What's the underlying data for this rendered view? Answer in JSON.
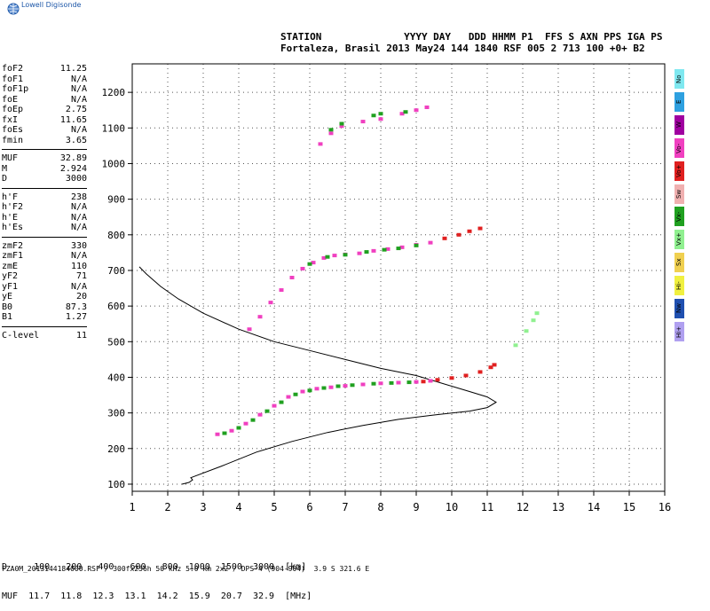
{
  "logo": {
    "text": "Lowell Digisonde",
    "icon": "globe-icon"
  },
  "header": {
    "line1": "STATION              YYYY DAY   DDD HHMM P1  FFS S AXN PPS IGA PS",
    "line2": "Fortaleza, Brasil 2013 May24 144 1840 RSF 005 2 713 100 +0+ B2"
  },
  "params": {
    "group1": [
      {
        "k": "foF2",
        "v": "11.25"
      },
      {
        "k": "foF1",
        "v": "N/A"
      },
      {
        "k": "foF1p",
        "v": "N/A"
      },
      {
        "k": "foE",
        "v": "N/A"
      },
      {
        "k": "foEp",
        "v": "2.75"
      },
      {
        "k": "fxI",
        "v": "11.65"
      },
      {
        "k": "foEs",
        "v": "N/A"
      },
      {
        "k": "fmin",
        "v": "3.65"
      }
    ],
    "group2": [
      {
        "k": "MUF",
        "v": "32.89"
      },
      {
        "k": "M",
        "v": "2.924"
      },
      {
        "k": "D",
        "v": "3000"
      }
    ],
    "group3": [
      {
        "k": "h'F",
        "v": "238"
      },
      {
        "k": "h'F2",
        "v": "N/A"
      },
      {
        "k": "h'E",
        "v": "N/A"
      },
      {
        "k": "h'Es",
        "v": "N/A"
      }
    ],
    "group4": [
      {
        "k": "zmF2",
        "v": "330"
      },
      {
        "k": "zmF1",
        "v": "N/A"
      },
      {
        "k": "zmE",
        "v": "110"
      },
      {
        "k": "yF2",
        "v": "71"
      },
      {
        "k": "yF1",
        "v": "N/A"
      },
      {
        "k": "yE",
        "v": "20"
      },
      {
        "k": "B0",
        "v": "87.3"
      },
      {
        "k": "B1",
        "v": "1.27"
      }
    ],
    "group5": [
      {
        "k": "C-level",
        "v": "11"
      }
    ]
  },
  "legend": [
    {
      "label": "No",
      "color": "#7fe8f0"
    },
    {
      "label": "E",
      "color": "#2ea0e0"
    },
    {
      "label": "W",
      "color": "#a000a0"
    },
    {
      "label": "Vo-",
      "color": "#f040c0"
    },
    {
      "label": "Vo+",
      "color": "#e02020"
    },
    {
      "label": "Sw",
      "color": "#f0b0b0"
    },
    {
      "label": "Vx-",
      "color": "#20a020"
    },
    {
      "label": "Vx+",
      "color": "#90f090"
    },
    {
      "label": "Sx",
      "color": "#f0d050"
    },
    {
      "label": "Hi-",
      "color": "#f0f040"
    },
    {
      "label": "Nw",
      "color": "#2050b0"
    },
    {
      "label": "Hi+",
      "color": "#b0a0f0"
    }
  ],
  "muf_table": {
    "line1": "D     100   200   400   600   800  1000  1500  3000  [km]",
    "line2": "MUF  11.7  11.8  12.3  13.1  14.2  15.9  20.7  32.9  [MHz]"
  },
  "footer": "FZA0M_2013144184000.RSF / 300fx256h 50 kHz 5.0 km 2x2 / DPS-4 (904-904)  3.9 S 321.6 E",
  "chart_data": {
    "type": "scatter",
    "xlim": [
      1,
      16
    ],
    "ylim": [
      80,
      1280
    ],
    "x_ticks": [
      1,
      2,
      3,
      4,
      5,
      6,
      7,
      8,
      9,
      10,
      11,
      12,
      13,
      14,
      15,
      16
    ],
    "y_ticks": [
      100,
      200,
      300,
      400,
      500,
      600,
      700,
      800,
      900,
      1000,
      1100,
      1200
    ],
    "grid": true,
    "series": [
      {
        "color": "#f040c0",
        "points": [
          [
            3.4,
            240
          ],
          [
            3.8,
            250
          ],
          [
            4.2,
            270
          ],
          [
            4.6,
            295
          ],
          [
            5.0,
            320
          ],
          [
            5.4,
            345
          ],
          [
            5.8,
            360
          ],
          [
            6.2,
            368
          ],
          [
            6.6,
            372
          ],
          [
            7.0,
            376
          ],
          [
            7.5,
            380
          ],
          [
            8.0,
            383
          ],
          [
            8.5,
            385
          ],
          [
            9.0,
            387
          ],
          [
            9.4,
            390
          ]
        ]
      },
      {
        "color": "#20a020",
        "points": [
          [
            3.6,
            243
          ],
          [
            4.0,
            258
          ],
          [
            4.4,
            280
          ],
          [
            4.8,
            305
          ],
          [
            5.2,
            330
          ],
          [
            5.6,
            352
          ],
          [
            6.0,
            363
          ],
          [
            6.4,
            370
          ],
          [
            6.8,
            375
          ],
          [
            7.2,
            378
          ],
          [
            7.8,
            382
          ],
          [
            8.3,
            384
          ],
          [
            8.8,
            386
          ]
        ]
      },
      {
        "color": "#e02020",
        "points": [
          [
            9.2,
            388
          ],
          [
            9.6,
            393
          ],
          [
            10.0,
            398
          ],
          [
            10.4,
            405
          ],
          [
            10.8,
            415
          ],
          [
            11.1,
            428
          ],
          [
            11.2,
            435
          ]
        ]
      },
      {
        "color": "#f040c0",
        "points": [
          [
            4.3,
            535
          ],
          [
            4.6,
            570
          ],
          [
            4.9,
            610
          ],
          [
            5.2,
            645
          ],
          [
            5.5,
            680
          ],
          [
            5.8,
            705
          ],
          [
            6.1,
            722
          ],
          [
            6.4,
            735
          ],
          [
            6.7,
            742
          ],
          [
            7.0,
            745
          ],
          [
            7.4,
            748
          ],
          [
            7.8,
            755
          ],
          [
            8.2,
            760
          ],
          [
            8.6,
            765
          ],
          [
            9.0,
            772
          ],
          [
            9.4,
            778
          ]
        ]
      },
      {
        "color": "#20a020",
        "points": [
          [
            6.0,
            718
          ],
          [
            6.5,
            738
          ],
          [
            7.0,
            744
          ],
          [
            7.6,
            752
          ],
          [
            8.1,
            758
          ],
          [
            8.5,
            762
          ],
          [
            9.0,
            770
          ]
        ]
      },
      {
        "color": "#e02020",
        "points": [
          [
            9.8,
            790
          ],
          [
            10.2,
            800
          ],
          [
            10.5,
            810
          ],
          [
            10.8,
            818
          ]
        ]
      },
      {
        "color": "#f040c0",
        "points": [
          [
            6.3,
            1055
          ],
          [
            6.6,
            1085
          ],
          [
            6.9,
            1105
          ],
          [
            7.5,
            1118
          ],
          [
            8.0,
            1125
          ],
          [
            8.6,
            1140
          ],
          [
            9.0,
            1150
          ],
          [
            9.3,
            1158
          ]
        ]
      },
      {
        "color": "#20a020",
        "points": [
          [
            6.6,
            1095
          ],
          [
            6.9,
            1112
          ],
          [
            7.8,
            1135
          ],
          [
            8.0,
            1140
          ],
          [
            8.7,
            1145
          ]
        ]
      },
      {
        "color": "#90f090",
        "points": [
          [
            11.8,
            490
          ],
          [
            12.1,
            530
          ],
          [
            12.3,
            560
          ],
          [
            12.4,
            580
          ]
        ]
      }
    ],
    "profile": [
      [
        2.4,
        100
      ],
      [
        2.6,
        105
      ],
      [
        2.7,
        112
      ],
      [
        2.65,
        118
      ],
      [
        3.5,
        150
      ],
      [
        4.5,
        190
      ],
      [
        5.5,
        220
      ],
      [
        6.5,
        245
      ],
      [
        7.5,
        265
      ],
      [
        8.5,
        282
      ],
      [
        9.5,
        294
      ],
      [
        10.5,
        305
      ],
      [
        11.0,
        315
      ],
      [
        11.25,
        330
      ],
      [
        11.0,
        345
      ],
      [
        10.5,
        360
      ],
      [
        10.0,
        375
      ],
      [
        9.5,
        390
      ],
      [
        9.0,
        405
      ],
      [
        8.0,
        425
      ],
      [
        7.0,
        450
      ],
      [
        6.0,
        475
      ],
      [
        5.0,
        500
      ],
      [
        4.0,
        535
      ],
      [
        3.0,
        580
      ],
      [
        2.3,
        620
      ],
      [
        1.8,
        655
      ],
      [
        1.4,
        690
      ],
      [
        1.2,
        710
      ]
    ]
  }
}
